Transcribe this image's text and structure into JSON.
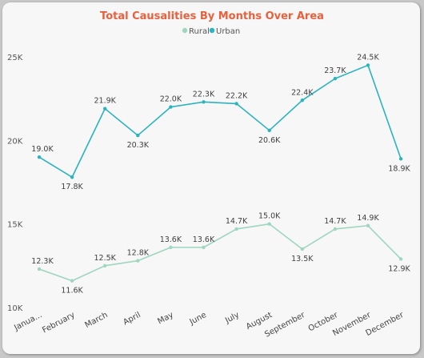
{
  "chart_data": {
    "type": "line",
    "title": "Total Causalities By Months Over Area",
    "categories": [
      "Janua...",
      "February",
      "March",
      "April",
      "May",
      "June",
      "July",
      "August",
      "September",
      "October",
      "November",
      "December"
    ],
    "series": [
      {
        "name": "Rural",
        "color": "#9ed6bf",
        "values": [
          12300,
          11600,
          12500,
          12800,
          13600,
          13600,
          14700,
          15000,
          13500,
          14700,
          14900,
          12900
        ],
        "labels": [
          "12.3K",
          "11.6K",
          "12.5K",
          "12.8K",
          "13.6K",
          "13.6K",
          "14.7K",
          "15.0K",
          "13.5K",
          "14.7K",
          "14.9K",
          "12.9K"
        ]
      },
      {
        "name": "Urban",
        "color": "#2bb3bf",
        "values": [
          19000,
          17800,
          21900,
          20300,
          22000,
          22300,
          22200,
          20600,
          22400,
          23700,
          24500,
          18900
        ],
        "labels": [
          "19.0K",
          "17.8K",
          "21.9K",
          "20.3K",
          "22.0K",
          "22.3K",
          "22.2K",
          "20.6K",
          "22.4K",
          "23.7K",
          "24.5K",
          "18.9K"
        ]
      }
    ],
    "ylim": [
      10000,
      25000
    ],
    "yticks": [
      10000,
      15000,
      20000,
      25000
    ],
    "ytick_labels": [
      "10K",
      "15K",
      "20K",
      "25K"
    ],
    "legend_position": "top-center",
    "grid": false
  }
}
